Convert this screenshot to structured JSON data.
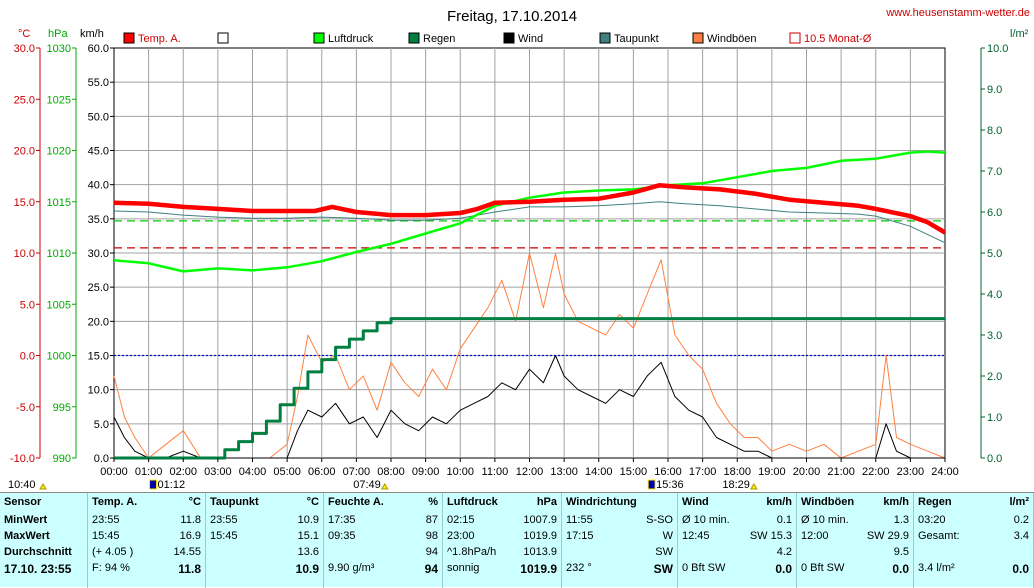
{
  "title": "Freitag, 17.10.2014",
  "site": "www.heusenstamm-wetter.de",
  "units": {
    "temp": "°C",
    "pressure": "hPa",
    "wind": "km/h",
    "rain": "l/m²"
  },
  "legend": [
    {
      "label": "Temp. A.",
      "color": "#ff0000"
    },
    {
      "label": "",
      "color": "#ffffff"
    },
    {
      "label": "Luftdruck",
      "color": "#00ff00"
    },
    {
      "label": "Regen",
      "color": "#008040"
    },
    {
      "label": "Wind",
      "color": "#000000"
    },
    {
      "label": "Taupunkt",
      "color": "#408080"
    },
    {
      "label": "Windböen",
      "color": "#ff8040"
    },
    {
      "label": "10.5 Monat-Ø",
      "color": "#ff0000"
    }
  ],
  "axes": {
    "temp_ticks": [
      "30.0",
      "25.0",
      "20.0",
      "15.0",
      "10.0",
      "5.0",
      "0.0",
      "-5.0",
      "-10.0"
    ],
    "press_ticks": [
      "1030",
      "1025",
      "1020",
      "1015",
      "1010",
      "1005",
      "1000",
      "995",
      "990"
    ],
    "wind_ticks": [
      "60.0",
      "55.0",
      "50.0",
      "45.0",
      "40.0",
      "35.0",
      "30.0",
      "25.0",
      "20.0",
      "15.0",
      "10.0",
      "5.0",
      "0.0"
    ],
    "rain_ticks": [
      "10.0",
      "9.0",
      "8.0",
      "7.0",
      "6.0",
      "5.0",
      "4.0",
      "3.0",
      "2.0",
      "1.0",
      "0.0"
    ],
    "x_ticks": [
      "00:00",
      "01:00",
      "02:00",
      "03:00",
      "04:00",
      "05:00",
      "06:00",
      "07:00",
      "08:00",
      "09:00",
      "10:00",
      "11:00",
      "12:00",
      "13:00",
      "14:00",
      "15:00",
      "16:00",
      "17:00",
      "18:00",
      "19:00",
      "20:00",
      "21:00",
      "22:00",
      "23:00",
      "24:00"
    ],
    "markers": [
      "10:40",
      "01:12",
      "07:49",
      "15:36",
      "18:29"
    ]
  },
  "chart_data": {
    "type": "line",
    "title": "Freitag, 17.10.2014",
    "x_unit": "hours",
    "xlim": [
      0,
      24
    ],
    "temp_ylim": [
      -10,
      30
    ],
    "press_ylim": [
      990,
      1030
    ],
    "wind_ylim": [
      0,
      60
    ],
    "rain_ylim": [
      0,
      10
    ],
    "reference_lines": [
      {
        "name": "10.5 Monat-Ø",
        "axis": "temp",
        "value": 10.5,
        "color": "#cc0000"
      },
      {
        "axis": "temp",
        "value": 0.0,
        "color": "#0000cc"
      },
      {
        "axis": "wind",
        "value": 34.7,
        "color": "#00cc00"
      }
    ],
    "series": [
      {
        "name": "Temp. A.",
        "axis": "temp",
        "color": "#ff0000",
        "x": [
          0,
          1,
          2,
          3,
          4,
          5,
          5.8,
          6.3,
          7,
          8,
          9,
          10,
          10.5,
          11,
          12,
          13,
          14,
          15,
          15.75,
          16.5,
          17.5,
          18.5,
          19.5,
          20.5,
          21.5,
          22,
          23,
          23.5,
          24
        ],
        "values": [
          14.9,
          14.8,
          14.5,
          14.3,
          14.1,
          14.1,
          14.1,
          14.5,
          14.0,
          13.7,
          13.7,
          13.9,
          14.3,
          14.9,
          15.0,
          15.2,
          15.3,
          15.9,
          16.6,
          16.4,
          16.2,
          15.8,
          15.2,
          14.9,
          14.6,
          14.3,
          13.6,
          13.0,
          12.0
        ]
      },
      {
        "name": "Taupunkt",
        "axis": "temp",
        "color": "#408080",
        "x": [
          0,
          1,
          2,
          3,
          4,
          5,
          6,
          7,
          8,
          9,
          10,
          11,
          12,
          13,
          14,
          15,
          15.75,
          16.5,
          17.5,
          18.5,
          19.5,
          20.5,
          21.5,
          22,
          23,
          24
        ],
        "values": [
          14.1,
          14.0,
          13.7,
          13.5,
          13.4,
          13.4,
          13.5,
          13.4,
          13.2,
          13.2,
          13.4,
          14.0,
          14.5,
          14.5,
          14.6,
          14.8,
          15.0,
          14.8,
          14.6,
          14.3,
          14.0,
          13.9,
          13.8,
          13.6,
          12.6,
          11.0
        ]
      },
      {
        "name": "Luftdruck",
        "axis": "press",
        "color": "#00ff00",
        "x": [
          0,
          1,
          2,
          3,
          4,
          5,
          6,
          7,
          7.5,
          8,
          9,
          10,
          11,
          12,
          13,
          14,
          15,
          16,
          17,
          18,
          19,
          20,
          21,
          22,
          23,
          23.5,
          24
        ],
        "values": [
          1009.3,
          1009.0,
          1008.2,
          1008.5,
          1008.3,
          1008.6,
          1009.2,
          1010.1,
          1010.5,
          1010.9,
          1011.9,
          1012.9,
          1014.6,
          1015.4,
          1015.9,
          1016.1,
          1016.2,
          1016.6,
          1016.8,
          1017.4,
          1018.0,
          1018.3,
          1019.0,
          1019.2,
          1019.8,
          1019.9,
          1019.8
        ]
      },
      {
        "name": "Regen",
        "axis": "rain",
        "color": "#008040",
        "x": [
          0,
          3.2,
          3.2,
          3.6,
          3.6,
          4.0,
          4.0,
          4.4,
          4.4,
          4.8,
          4.8,
          5.2,
          5.2,
          5.6,
          5.6,
          6.0,
          6.0,
          6.4,
          6.4,
          6.8,
          6.8,
          7.2,
          7.2,
          7.6,
          7.6,
          8.0,
          8.0,
          8.3,
          8.3,
          24
        ],
        "values": [
          0.0,
          0.0,
          0.2,
          0.2,
          0.4,
          0.4,
          0.6,
          0.6,
          0.9,
          0.9,
          1.3,
          1.3,
          1.7,
          1.7,
          2.1,
          2.1,
          2.4,
          2.4,
          2.7,
          2.7,
          2.9,
          2.9,
          3.1,
          3.1,
          3.3,
          3.3,
          3.4,
          3.4,
          3.4,
          3.4
        ]
      },
      {
        "name": "Wind",
        "axis": "wind",
        "color": "#000000",
        "x": [
          0,
          0.3,
          0.6,
          1.0,
          1.5,
          2.0,
          2.5,
          3.0,
          3.5,
          4.0,
          4.5,
          5.0,
          5.3,
          5.6,
          6.0,
          6.4,
          6.8,
          7.2,
          7.6,
          8.0,
          8.4,
          8.8,
          9.2,
          9.6,
          10.0,
          10.4,
          10.8,
          11.2,
          11.6,
          12.0,
          12.4,
          12.75,
          13.0,
          13.4,
          13.8,
          14.2,
          14.6,
          15.0,
          15.4,
          15.8,
          16.2,
          16.6,
          17.0,
          17.4,
          17.8,
          18.2,
          18.6,
          19.0,
          19.5,
          20.0,
          20.5,
          21.0,
          21.5,
          22.0,
          22.3,
          22.6,
          23.0,
          23.5,
          24.0
        ],
        "values": [
          6,
          3,
          1,
          0,
          0,
          1,
          0,
          0,
          0,
          0,
          0,
          0,
          4,
          7,
          6,
          8,
          5,
          6,
          3,
          7,
          5,
          4,
          6,
          5,
          7,
          8,
          9,
          11,
          10,
          13,
          11,
          15,
          12,
          10,
          9,
          8,
          10,
          9,
          12,
          14,
          9,
          7,
          6,
          3,
          2,
          1,
          1,
          0,
          0,
          0,
          0,
          0,
          0,
          0,
          5,
          1,
          0,
          0,
          0
        ]
      },
      {
        "name": "Windböen",
        "axis": "wind",
        "color": "#ff8040",
        "x": [
          0,
          0.3,
          0.6,
          1.0,
          1.5,
          2.0,
          2.5,
          3.0,
          3.5,
          4.0,
          4.5,
          5.0,
          5.3,
          5.6,
          6.0,
          6.4,
          6.8,
          7.2,
          7.6,
          8.0,
          8.4,
          8.8,
          9.2,
          9.6,
          10.0,
          10.4,
          10.8,
          11.2,
          11.6,
          12.0,
          12.4,
          12.75,
          13.0,
          13.4,
          13.8,
          14.2,
          14.6,
          15.0,
          15.4,
          15.8,
          16.2,
          16.6,
          17.0,
          17.4,
          17.8,
          18.2,
          18.6,
          19.0,
          19.5,
          20.0,
          20.5,
          21.0,
          21.5,
          22.0,
          22.3,
          22.6,
          23.0,
          23.5,
          24.0
        ],
        "values": [
          12,
          6,
          3,
          0,
          2,
          4,
          0,
          0,
          0,
          0,
          0,
          2,
          9,
          18,
          14,
          15,
          10,
          12,
          7,
          14,
          11,
          9,
          13,
          10,
          16,
          19,
          22,
          26,
          20,
          30,
          22,
          29.9,
          24,
          20,
          19,
          18,
          21,
          19,
          24,
          29,
          18,
          15,
          13,
          8,
          5,
          3,
          3,
          1,
          2,
          1,
          2,
          0,
          1,
          2,
          15,
          3,
          2,
          1,
          0
        ]
      }
    ]
  },
  "panel": {
    "columns": [
      {
        "header": [
          "Sensor",
          ""
        ],
        "min": [
          "MinWert",
          ""
        ],
        "max": [
          "MaxWert",
          ""
        ],
        "avg": [
          "Durchschnitt",
          ""
        ],
        "foot": [
          "17.10. 23:55",
          ""
        ]
      },
      {
        "header": [
          "Temp. A.",
          "°C"
        ],
        "min": [
          "23:55",
          "11.8"
        ],
        "max": [
          "15:45",
          "16.9"
        ],
        "avg": [
          "(+ 4.05 )",
          "14.55"
        ],
        "foot": [
          "F: 94 %",
          "11.8"
        ]
      },
      {
        "header": [
          "Taupunkt",
          "°C"
        ],
        "min": [
          "23:55",
          "10.9"
        ],
        "max": [
          "15:45",
          "15.1"
        ],
        "avg": [
          "",
          "13.6"
        ],
        "foot": [
          "",
          "10.9"
        ]
      },
      {
        "header": [
          "Feuchte A.",
          "%"
        ],
        "min": [
          "17:35",
          "87"
        ],
        "max": [
          "09:35",
          "98"
        ],
        "avg": [
          "",
          "94"
        ],
        "foot": [
          "9.90 g/m³",
          "94"
        ]
      },
      {
        "header": [
          "Luftdruck",
          "hPa"
        ],
        "min": [
          "02:15",
          "1007.9"
        ],
        "max": [
          "23:00",
          "1019.9"
        ],
        "avg": [
          "^1.8hPa/h",
          "1013.9"
        ],
        "foot": [
          "sonnig",
          "1019.9"
        ]
      },
      {
        "header": [
          "Windrichtung",
          ""
        ],
        "min": [
          "11:55",
          "S-SO"
        ],
        "max": [
          "17:15",
          "W"
        ],
        "avg": [
          "",
          "SW"
        ],
        "foot": [
          "232 °",
          "SW"
        ]
      },
      {
        "header": [
          "Wind",
          "km/h"
        ],
        "min": [
          "Ø 10 min.",
          "0.1"
        ],
        "max": [
          "12:45",
          "SW 15.3"
        ],
        "avg": [
          "",
          "4.2"
        ],
        "foot": [
          "0 Bft SW",
          "0.0"
        ]
      },
      {
        "header": [
          "Windböen",
          "km/h"
        ],
        "min": [
          "Ø 10 min.",
          "1.3"
        ],
        "max": [
          "12:00",
          "SW 29.9"
        ],
        "avg": [
          "",
          "9.5"
        ],
        "foot": [
          "0 Bft SW",
          "0.0"
        ]
      },
      {
        "header": [
          "Regen",
          "l/m²"
        ],
        "min": [
          "03:20",
          "0.2"
        ],
        "max": [
          "Gesamt:",
          "3.4"
        ],
        "avg": [
          "",
          ""
        ],
        "foot": [
          "3.4 l/m²",
          "0.0"
        ]
      }
    ]
  }
}
